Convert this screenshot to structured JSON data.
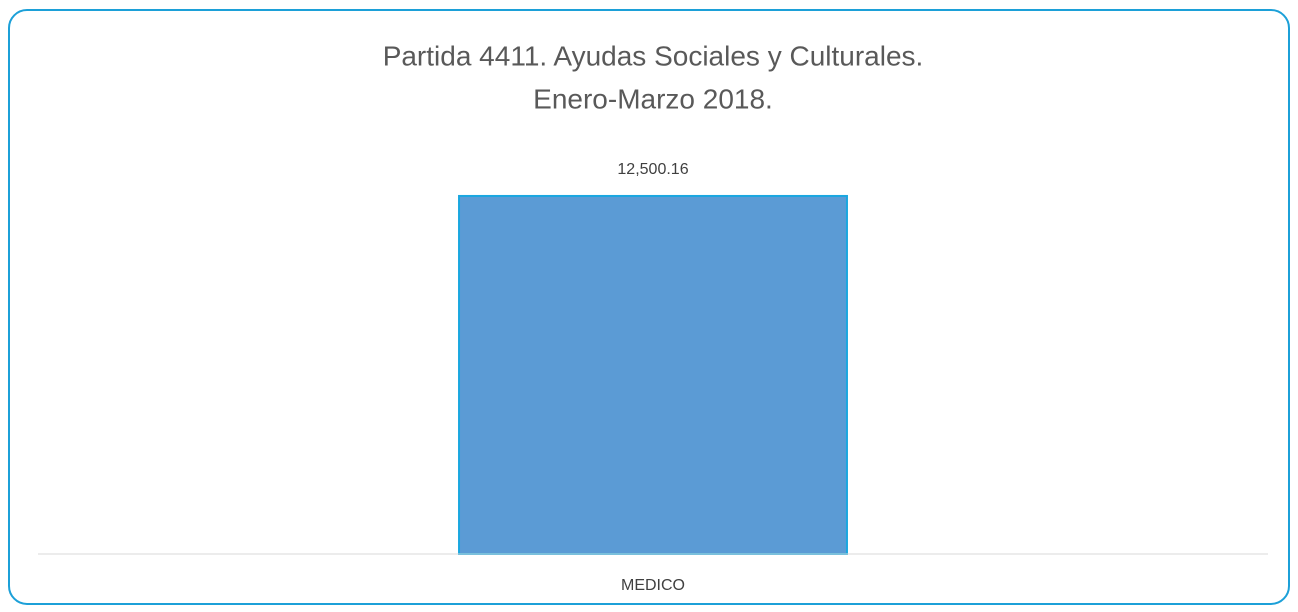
{
  "chart_data": {
    "type": "bar",
    "title": [
      "Partida 4411. Ayudas Sociales y Culturales.",
      "Enero-Marzo 2018."
    ],
    "categories": [
      "MEDICO"
    ],
    "values": [
      12500.16
    ],
    "value_labels": [
      "12,500.16"
    ],
    "color": "#5b9bd5",
    "ylim": [
      0,
      14000
    ]
  }
}
